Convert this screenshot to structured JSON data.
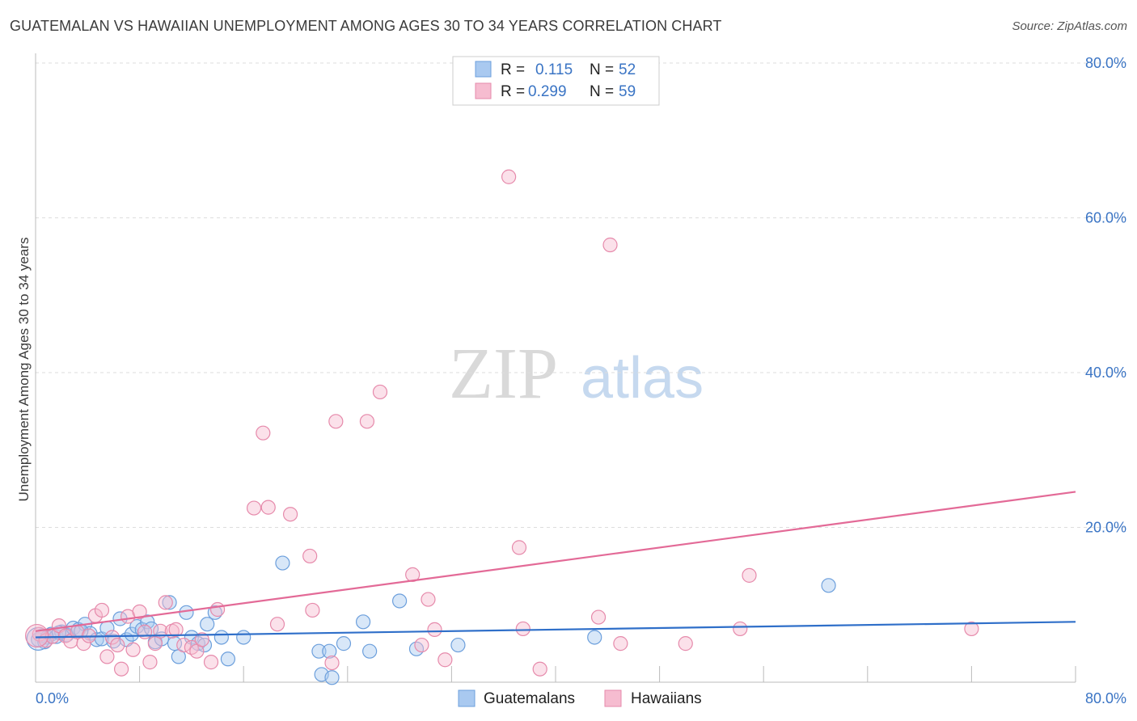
{
  "title": "GUATEMALAN VS HAWAIIAN UNEMPLOYMENT AMONG AGES 30 TO 34 YEARS CORRELATION CHART",
  "source": "Source: ZipAtlas.com",
  "watermark": {
    "zip": "ZIP",
    "atlas": "atlas"
  },
  "colors": {
    "blue_fill": "#a9c9f0",
    "blue_stroke": "#6c9fdc",
    "blue_line": "#2f6fc9",
    "pink_fill": "#f6bcd0",
    "pink_stroke": "#e68aab",
    "pink_line": "#e36a97",
    "grid": "#dddddd",
    "tick_text": "#3a74c4"
  },
  "legend": {
    "rows": [
      {
        "r_label": "R =",
        "r_value": "0.115",
        "n_label": "N =",
        "n_value": "52"
      },
      {
        "r_label": "R =",
        "r_value": "0.299",
        "n_label": "N =",
        "n_value": "59"
      }
    ]
  },
  "chart_data": {
    "type": "scatter",
    "title": "GUATEMALAN VS HAWAIIAN UNEMPLOYMENT AMONG AGES 30 TO 34 YEARS CORRELATION CHART",
    "xlabel": "",
    "ylabel": "Unemployment Among Ages 30 to 34 years",
    "xlim": [
      0,
      80
    ],
    "ylim": [
      0,
      80
    ],
    "x_tick_labels": [
      "0.0%",
      "80.0%"
    ],
    "y_ticks": [
      20,
      40,
      60,
      80
    ],
    "y_tick_labels": [
      "20.0%",
      "40.0%",
      "60.0%",
      "80.0%"
    ],
    "grid": true,
    "legend_position": "top-center",
    "series": [
      {
        "name": "Guatemalans",
        "r": 0.115,
        "n": 52,
        "trend": {
          "x": [
            0,
            80
          ],
          "y": [
            5.8,
            7.8
          ]
        },
        "points": [
          [
            0.2,
            5.5
          ],
          [
            0.5,
            6.0
          ],
          [
            0.9,
            5.8
          ],
          [
            1.2,
            6.2
          ],
          [
            1.6,
            5.9
          ],
          [
            2.0,
            6.5
          ],
          [
            2.4,
            6.1
          ],
          [
            2.9,
            7.0
          ],
          [
            3.3,
            6.8
          ],
          [
            3.8,
            7.5
          ],
          [
            4.2,
            6.3
          ],
          [
            4.7,
            5.5
          ],
          [
            5.1,
            5.6
          ],
          [
            5.5,
            7.0
          ],
          [
            6.0,
            5.3
          ],
          [
            6.5,
            8.2
          ],
          [
            7.0,
            5.5
          ],
          [
            7.4,
            6.2
          ],
          [
            7.8,
            7.2
          ],
          [
            8.2,
            6.8
          ],
          [
            8.6,
            7.8
          ],
          [
            9.2,
            5.2
          ],
          [
            9.7,
            5.6
          ],
          [
            10.3,
            10.3
          ],
          [
            10.7,
            5.0
          ],
          [
            11.0,
            3.3
          ],
          [
            11.6,
            9.0
          ],
          [
            12.0,
            5.8
          ],
          [
            12.5,
            5.0
          ],
          [
            13.0,
            4.8
          ],
          [
            13.2,
            7.5
          ],
          [
            13.8,
            9.0
          ],
          [
            14.3,
            5.8
          ],
          [
            14.8,
            3.0
          ],
          [
            16.0,
            5.8
          ],
          [
            19.0,
            15.4
          ],
          [
            21.8,
            4.0
          ],
          [
            22.0,
            1.0
          ],
          [
            22.6,
            4.0
          ],
          [
            22.8,
            0.6
          ],
          [
            23.7,
            5.0
          ],
          [
            25.2,
            7.8
          ],
          [
            25.7,
            4.0
          ],
          [
            28.0,
            10.5
          ],
          [
            29.3,
            4.3
          ],
          [
            32.5,
            4.8
          ],
          [
            43.0,
            5.8
          ],
          [
            61.0,
            12.5
          ],
          [
            0.7,
            5.2
          ],
          [
            1.8,
            6.4
          ],
          [
            3.5,
            6.6
          ],
          [
            8.9,
            6.9
          ]
        ]
      },
      {
        "name": "Hawaiians",
        "r": 0.299,
        "n": 59,
        "trend": {
          "x": [
            0,
            80
          ],
          "y": [
            6.6,
            24.6
          ]
        },
        "points": [
          [
            0.3,
            6.2
          ],
          [
            0.8,
            5.4
          ],
          [
            1.3,
            5.9
          ],
          [
            1.8,
            7.3
          ],
          [
            2.3,
            6.0
          ],
          [
            2.7,
            5.3
          ],
          [
            3.2,
            6.5
          ],
          [
            3.7,
            5.0
          ],
          [
            4.1,
            6.0
          ],
          [
            4.6,
            8.6
          ],
          [
            5.1,
            9.3
          ],
          [
            5.5,
            3.3
          ],
          [
            5.9,
            5.8
          ],
          [
            6.3,
            4.8
          ],
          [
            6.6,
            1.7
          ],
          [
            7.1,
            8.5
          ],
          [
            7.5,
            4.2
          ],
          [
            8.0,
            9.1
          ],
          [
            8.4,
            6.5
          ],
          [
            8.8,
            2.6
          ],
          [
            9.2,
            5.0
          ],
          [
            9.6,
            6.6
          ],
          [
            10.0,
            10.3
          ],
          [
            10.5,
            6.6
          ],
          [
            10.8,
            6.8
          ],
          [
            11.4,
            4.8
          ],
          [
            12.0,
            4.5
          ],
          [
            12.4,
            4.0
          ],
          [
            12.8,
            5.5
          ],
          [
            13.5,
            2.6
          ],
          [
            14.0,
            9.4
          ],
          [
            16.8,
            22.5
          ],
          [
            17.5,
            32.2
          ],
          [
            17.9,
            22.6
          ],
          [
            18.6,
            7.5
          ],
          [
            19.6,
            21.7
          ],
          [
            21.1,
            16.3
          ],
          [
            21.3,
            9.3
          ],
          [
            22.8,
            2.5
          ],
          [
            23.1,
            33.7
          ],
          [
            25.5,
            33.7
          ],
          [
            26.5,
            37.5
          ],
          [
            29.0,
            13.9
          ],
          [
            29.7,
            4.8
          ],
          [
            30.2,
            10.7
          ],
          [
            30.7,
            6.8
          ],
          [
            31.5,
            2.9
          ],
          [
            36.4,
            65.3
          ],
          [
            37.2,
            17.4
          ],
          [
            37.5,
            6.9
          ],
          [
            38.8,
            1.7
          ],
          [
            43.3,
            8.4
          ],
          [
            44.2,
            56.5
          ],
          [
            45.0,
            5.0
          ],
          [
            50.0,
            5.0
          ],
          [
            54.2,
            6.9
          ],
          [
            54.9,
            13.8
          ],
          [
            72.0,
            6.9
          ],
          [
            0.1,
            6.0
          ]
        ]
      }
    ]
  },
  "bottom_legend": {
    "items": [
      "Guatemalans",
      "Hawaiians"
    ]
  }
}
